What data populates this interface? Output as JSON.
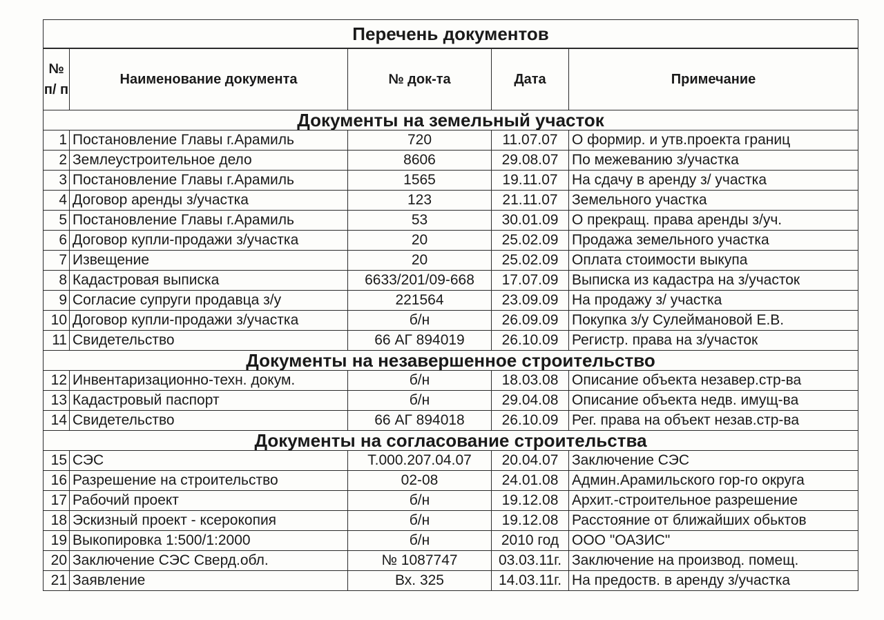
{
  "title": "Перечень документов",
  "header": [
    "№ п/ п",
    "Наименование документа",
    "№ док-та",
    "Дата",
    "Примечание"
  ],
  "sections": [
    {
      "title": "Документы на земельный участок",
      "rows": [
        [
          "1",
          "Постановление Главы г.Арамиль",
          "720",
          "11.07.07",
          "О формир. и утв.проекта границ"
        ],
        [
          "2",
          "Землеустроительное дело",
          "8606",
          "29.08.07",
          "По межеванию з/участка"
        ],
        [
          "3",
          "Постановление Главы г.Арамиль",
          "1565",
          "19.11.07",
          "На сдачу в аренду з/ участка"
        ],
        [
          "4",
          "Договор аренды з/участка",
          "123",
          "21.11.07",
          "Земельного участка"
        ],
        [
          "5",
          "Постановление Главы г.Арамиль",
          "53",
          "30.01.09",
          "О прекращ. права аренды з/уч."
        ],
        [
          "6",
          "Договор купли-продажи з/участка",
          "20",
          "25.02.09",
          "Продажа земельного участка"
        ],
        [
          "7",
          "Извещение",
          "20",
          "25.02.09",
          "Оплата стоимости выкупа"
        ],
        [
          "8",
          "Кадастровая выписка",
          "6633/201/09-668",
          "17.07.09",
          "Выписка из кадастра на з/участок"
        ],
        [
          "9",
          "Согласие супруги продавца з/у",
          "221564",
          "23.09.09",
          "На продажу з/ участка"
        ],
        [
          "10",
          "Договор купли-продажи з/участка",
          "б/н",
          "26.09.09",
          "Покупка з/у Сулеймановой Е.В."
        ],
        [
          "11",
          "Свидетельство",
          "66 АГ 894019",
          "26.10.09",
          "Регистр. права на з/участок"
        ]
      ]
    },
    {
      "title": "Документы на незавершенное строительство",
      "rows": [
        [
          "12",
          "Инвентаризационно-техн. докум.",
          "б/н",
          "18.03.08",
          "Описание объекта незавер.стр-ва"
        ],
        [
          "13",
          "Кадастровый паспорт",
          "б/н",
          "29.04.08",
          "Описание объекта недв. имущ-ва"
        ],
        [
          "14",
          "Свидетельство",
          "66 АГ 894018",
          "26.10.09",
          "Рег. права на объект незав.стр-ва"
        ]
      ]
    },
    {
      "title": "Документы на согласование строительства",
      "rows": [
        [
          "15",
          "СЭС",
          "Т.000.207.04.07",
          "20.04.07",
          "Заключение СЭС"
        ],
        [
          "16",
          "Разрешение на строительство",
          "02-08",
          "24.01.08",
          "Админ.Арамильского гор-го округа"
        ],
        [
          "17",
          "Рабочий проект",
          "б/н",
          "19.12.08",
          "Архит.-строительное разрешение"
        ],
        [
          "18",
          "Эскизный проект - ксерокопия",
          "б/н",
          "19.12.08",
          "Расстояние от ближайших обьктов"
        ],
        [
          "19",
          "Выкопировка 1:500/1:2000",
          "б/н",
          "2010 год",
          "ООО \"ОАЗИС\""
        ],
        [
          "20",
          "Заключение СЭС Сверд.обл.",
          "№ 1087747",
          "03.03.11г.",
          "Заключение на производ. помещ."
        ],
        [
          "21",
          "Заявление",
          "Вх. 325",
          "14.03.11г.",
          "На предоств. в аренду з/участка"
        ]
      ]
    }
  ]
}
